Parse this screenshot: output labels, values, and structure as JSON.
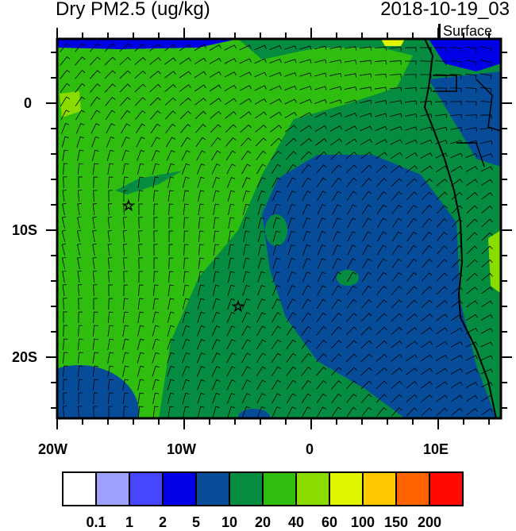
{
  "title": "Dry PM2.5 (ug/kg)",
  "date": "2018-10-19_03",
  "level": "Surface",
  "x_ticks": [
    "20W",
    "10W",
    "0",
    "10E"
  ],
  "y_ticks": [
    "0",
    "10S",
    "20S"
  ],
  "colorbar": {
    "colors": [
      "#ffffff",
      "#a0a0ff",
      "#4646ff",
      "#0000e6",
      "#064c98",
      "#068c40",
      "#2fbe10",
      "#8adc00",
      "#e0f500",
      "#ffc800",
      "#ff6400",
      "#ff0a00"
    ],
    "labels": [
      "0.1",
      "1",
      "2",
      "5",
      "10",
      "20",
      "40",
      "60",
      "100",
      "150",
      "200"
    ]
  },
  "markers": [
    {
      "lon": -14.4,
      "lat": -8.1
    },
    {
      "lon": -5.7,
      "lat": -16.0
    }
  ]
}
